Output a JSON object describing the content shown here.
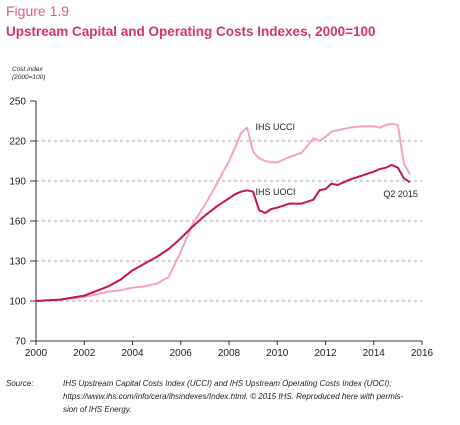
{
  "chart_data": {
    "type": "line",
    "figure_label": "Figure 1.9",
    "title": "Upstream Capital and Operating Costs Indexes, 2000=100",
    "ylabel": [
      "Cost index",
      "(2000=100)"
    ],
    "x": [
      2000,
      2001,
      2002,
      2003,
      2003.5,
      2004,
      2004.5,
      2005,
      2005.5,
      2006,
      2006.5,
      2007,
      2007.5,
      2008,
      2008.25,
      2008.5,
      2008.75,
      2009,
      2009.25,
      2009.5,
      2009.75,
      2010,
      2010.5,
      2011,
      2011.5,
      2011.75,
      2012,
      2012.25,
      2012.5,
      2013,
      2013.5,
      2014,
      2014.25,
      2014.5,
      2014.75,
      2015,
      2015.25,
      2015.5
    ],
    "series": [
      {
        "name": "IHS UCCI",
        "color": "#f3a3bf",
        "values": [
          100,
          101,
          103,
          107,
          108,
          110,
          111,
          113,
          118,
          137,
          158,
          172,
          188,
          205,
          215,
          226,
          230,
          212,
          207,
          205,
          204,
          204,
          208,
          211,
          222,
          220,
          223,
          227,
          228,
          230,
          231,
          231,
          230,
          232,
          233,
          232,
          203,
          195
        ]
      },
      {
        "name": "IHS UOCI",
        "color": "#c8105a",
        "values": [
          100,
          101,
          104,
          111,
          116,
          123,
          128,
          133,
          139,
          147,
          156,
          164,
          171,
          177,
          180,
          182,
          183,
          182,
          168,
          166,
          169,
          170,
          173,
          173,
          176,
          183,
          184,
          188,
          187,
          191,
          194,
          197,
          199,
          200,
          202,
          200,
          192,
          189
        ]
      }
    ],
    "annotations": [
      "Q2 2015"
    ],
    "xlim": [
      2000,
      2016
    ],
    "xticks": [
      2000,
      2002,
      2004,
      2006,
      2008,
      2010,
      2012,
      2014,
      2016
    ],
    "ylim": [
      70,
      250
    ],
    "yticks": [
      70,
      100,
      130,
      160,
      190,
      220,
      250
    ],
    "grid": true,
    "source_label": "Source:",
    "source_lines": [
      "IHS Upstream Capital Costs Index (UCCI) and IHS Upstream Operating Costs Index (UOCI);",
      "https://www.ihs.com/info/cera/ihsindexes/Index.html. © 2015 IHS. Reproduced here with permis-",
      "sion of IHS Energy."
    ]
  }
}
